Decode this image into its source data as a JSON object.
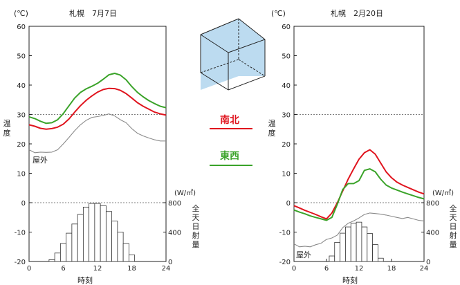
{
  "colors": {
    "ns": "#e0141e",
    "ew": "#3aa329",
    "outdoor": "#8a8a8a",
    "axis": "#222222",
    "box_fill": "#bcdbf0"
  },
  "legend": {
    "ns_label": "南北",
    "ew_label": "東西"
  },
  "chart_data": [
    {
      "type": "line",
      "title": "札幌　7月7日",
      "ylabel": "温度",
      "yunit": "(℃)",
      "xlabel": "時刻",
      "ylim": [
        -20,
        60
      ],
      "yticks": [
        -20,
        -10,
        0,
        10,
        20,
        30,
        40,
        50,
        60
      ],
      "xlim": [
        0,
        24
      ],
      "xticks": [
        0,
        6,
        12,
        18,
        24
      ],
      "dotted_reference_lines": [
        30,
        0
      ],
      "outdoor_label": "屋外",
      "series": [
        {
          "name": "南北",
          "x": [
            0,
            1,
            2,
            3,
            4,
            5,
            6,
            7,
            8,
            9,
            10,
            11,
            12,
            13,
            14,
            15,
            16,
            17,
            18,
            19,
            20,
            21,
            22,
            23,
            24
          ],
          "values": [
            26.5,
            26,
            25.3,
            25,
            25.2,
            25.7,
            26.7,
            28.5,
            30.8,
            33,
            34.8,
            36.3,
            37.6,
            38.5,
            38.9,
            38.8,
            38.2,
            37.1,
            35.6,
            34,
            32.8,
            31.8,
            30.8,
            30.2,
            29.8
          ]
        },
        {
          "name": "東西",
          "x": [
            0,
            1,
            2,
            3,
            4,
            5,
            6,
            7,
            8,
            9,
            10,
            11,
            12,
            13,
            14,
            15,
            16,
            17,
            18,
            19,
            20,
            21,
            22,
            23,
            24
          ],
          "values": [
            29.2,
            28.6,
            27.7,
            27,
            27.2,
            28.2,
            30.3,
            33,
            35.6,
            37.5,
            38.7,
            39.6,
            40.6,
            42,
            43.5,
            44,
            43.4,
            41.8,
            39.5,
            37.5,
            36,
            34.7,
            33.7,
            32.8,
            32.3
          ]
        },
        {
          "name": "屋外",
          "x": [
            0,
            1,
            2,
            3,
            4,
            5,
            6,
            7,
            8,
            9,
            10,
            11,
            12,
            13,
            14,
            15,
            16,
            17,
            18,
            19,
            20,
            21,
            22,
            23,
            24
          ],
          "values": [
            18,
            17,
            17.2,
            17.1,
            17.2,
            18,
            20,
            22.2,
            24.5,
            26.5,
            28,
            29,
            29.3,
            29.7,
            30.2,
            29.5,
            28.2,
            27.2,
            25.2,
            23.6,
            22.7,
            22,
            21.4,
            21,
            21
          ]
        }
      ],
      "radiation": {
        "ylabel": "全天日射量",
        "unit": "(W/㎡)",
        "ylim": [
          0,
          800
        ],
        "yticks": [
          0,
          400,
          800
        ],
        "hours": [
          4,
          5,
          6,
          7,
          8,
          9,
          10,
          11,
          12,
          13,
          14,
          15,
          16,
          17,
          18
        ],
        "values": [
          25,
          115,
          245,
          385,
          510,
          640,
          740,
          790,
          790,
          760,
          680,
          550,
          400,
          245,
          90
        ]
      }
    },
    {
      "type": "line",
      "title": "札幌　2月20日",
      "ylabel": "温度",
      "yunit": "(℃)",
      "xlabel": "時刻",
      "ylim": [
        -20,
        60
      ],
      "yticks": [
        -20,
        -10,
        0,
        10,
        20,
        30,
        40,
        50,
        60
      ],
      "xlim": [
        0,
        24
      ],
      "xticks": [
        0,
        6,
        12,
        18,
        24
      ],
      "dotted_reference_lines": [
        30,
        0
      ],
      "outdoor_label": "屋外",
      "series": [
        {
          "name": "南北",
          "x": [
            0,
            1,
            2,
            3,
            4,
            5,
            6,
            7,
            8,
            9,
            10,
            11,
            12,
            13,
            14,
            15,
            16,
            17,
            18,
            19,
            20,
            21,
            22,
            23,
            24
          ],
          "values": [
            -1,
            -1.8,
            -2.6,
            -3.3,
            -4,
            -4.8,
            -5.5,
            -3.5,
            0,
            4,
            8,
            11.5,
            14.8,
            17,
            18,
            16.5,
            13.5,
            10.5,
            8.5,
            7,
            6,
            5.2,
            4.4,
            3.6,
            3
          ]
        },
        {
          "name": "東西",
          "x": [
            0,
            1,
            2,
            3,
            4,
            5,
            6,
            7,
            8,
            9,
            10,
            11,
            12,
            13,
            14,
            15,
            16,
            17,
            18,
            19,
            20,
            21,
            22,
            23,
            24
          ],
          "values": [
            -2.5,
            -3.2,
            -3.8,
            -4.5,
            -5,
            -5.5,
            -6,
            -5,
            -0.5,
            4.5,
            6.5,
            6.5,
            7.5,
            11,
            11.5,
            10.5,
            8,
            6,
            5,
            4.3,
            3.6,
            3,
            2.4,
            1.8,
            1.3
          ]
        },
        {
          "name": "屋外",
          "x": [
            0,
            1,
            2,
            3,
            4,
            5,
            6,
            7,
            8,
            9,
            10,
            11,
            12,
            13,
            14,
            15,
            16,
            17,
            18,
            19,
            20,
            21,
            22,
            23,
            24
          ],
          "values": [
            -14,
            -15,
            -14.8,
            -15,
            -14.3,
            -13.8,
            -12.5,
            -12,
            -11,
            -8.5,
            -7,
            -6.2,
            -5.2,
            -4,
            -3.5,
            -3.7,
            -3.9,
            -4.2,
            -4.6,
            -5,
            -5.4,
            -5,
            -5.5,
            -6,
            -6.2
          ]
        }
      ],
      "radiation": {
        "ylabel": "全天日射量",
        "unit": "(W/㎡)",
        "ylim": [
          0,
          800
        ],
        "yticks": [
          0,
          400,
          800
        ],
        "hours": [
          7,
          8,
          9,
          10,
          11,
          12,
          13,
          14,
          15,
          16
        ],
        "values": [
          75,
          260,
          385,
          470,
          520,
          535,
          470,
          380,
          230,
          45
        ]
      }
    }
  ]
}
